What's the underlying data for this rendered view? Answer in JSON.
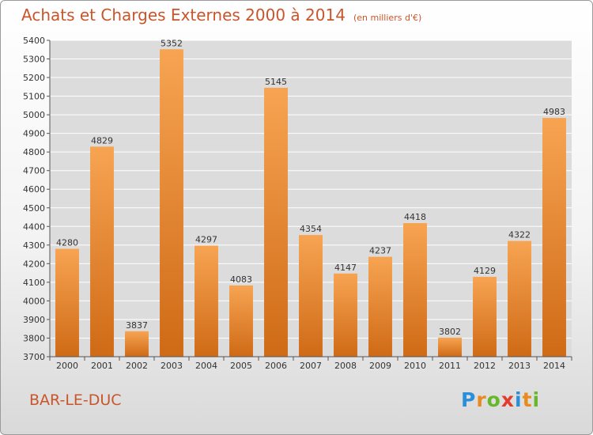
{
  "header": {
    "title": "Achats et Charges Externes 2000 à 2014",
    "subtitle": "(en milliers d'€)"
  },
  "footer": {
    "town": "BAR-LE-DUC",
    "logo": {
      "letters": [
        "P",
        "r",
        "o",
        "x",
        "i",
        "t",
        "i"
      ],
      "colors": [
        "#2a8fd8",
        "#e98a1f",
        "#67b72c",
        "#e33b2c",
        "#2a8fd8",
        "#e98a1f",
        "#67b72c"
      ]
    }
  },
  "chart_data": {
    "type": "bar",
    "categories": [
      "2000",
      "2001",
      "2002",
      "2003",
      "2004",
      "2005",
      "2006",
      "2007",
      "2008",
      "2009",
      "2010",
      "2011",
      "2012",
      "2013",
      "2014"
    ],
    "values": [
      4280,
      4829,
      3837,
      5352,
      4297,
      4083,
      5145,
      4354,
      4147,
      4237,
      4418,
      3802,
      4129,
      4322,
      4983
    ],
    "title": "Achats et Charges Externes 2000 à 2014",
    "subtitle": "(en milliers d'€)",
    "ylim": [
      3700,
      5400
    ],
    "yticks": [
      3700,
      3800,
      3900,
      4000,
      4100,
      4200,
      4300,
      4400,
      4500,
      4600,
      4700,
      4800,
      4900,
      5000,
      5100,
      5200,
      5300,
      5400
    ],
    "grid": true,
    "legend": "none",
    "colors": {
      "bar_light": "#f7a452",
      "bar_dark": "#cf6a16",
      "plot_bg": "#dcdcdc",
      "grid": "#ffffff"
    }
  }
}
